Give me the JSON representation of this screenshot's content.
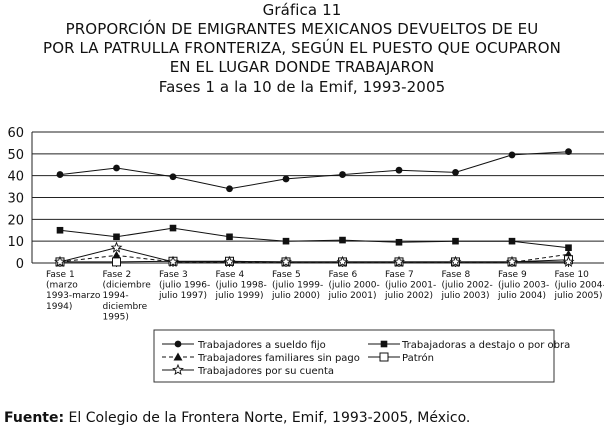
{
  "heading": {
    "figure_label": "Gráfica 11",
    "line1": "PROPORCIÓN DE EMIGRANTES MEXICANOS DEVUELTOS DE EU",
    "line2": "POR LA PATRULLA FRONTERIZA, SEGÚN EL PUESTO QUE OCUPARON",
    "line3": "EN EL LUGAR DONDE TRABAJARON",
    "line4": "Fases 1 a la 10 de la Emif, 1993-2005"
  },
  "footer": {
    "label": "Fuente:",
    "text": " El Colegio de la Frontera Norte, Emif, 1993-2005, México."
  },
  "chart_data": {
    "type": "line",
    "title": "Fases 1 a la 10 de la Emif, 1993-2005",
    "xlabel": "",
    "ylabel": "",
    "ylim": [
      0,
      60
    ],
    "yticks": [
      0,
      10,
      20,
      30,
      40,
      50,
      60
    ],
    "grid": true,
    "legend_position": "bottom",
    "categories": [
      [
        "Fase 1",
        "(marzo",
        "1993-marzo",
        "1994)"
      ],
      [
        "Fase 2",
        "(diciembre",
        "1994-",
        "diciembre",
        "1995)"
      ],
      [
        "Fase 3",
        "(julio 1996-",
        "julio 1997)"
      ],
      [
        "Fase 4",
        "(julio 1998-",
        "julio 1999)"
      ],
      [
        "Fase 5",
        "(julio 1999-",
        "julio 2000)"
      ],
      [
        "Fase 6",
        "(julio 2000-",
        "julio 2001)"
      ],
      [
        "Fase 7",
        "(julio 2001-",
        "julio 2002)"
      ],
      [
        "Fase 8",
        "(julio 2002-",
        "julio 2003)"
      ],
      [
        "Fase 9",
        "(julio 2003-",
        "julio 2004)"
      ],
      [
        "Fase 10",
        "(julio 2004-",
        "julio 2005)"
      ]
    ],
    "series": [
      {
        "name": "Trabajadores a sueldo fijo",
        "marker": "circle",
        "dash": "solid",
        "values": [
          40.5,
          43.5,
          39.5,
          34,
          38.5,
          40.5,
          42.5,
          41.5,
          49.5,
          51
        ]
      },
      {
        "name": "Trabajadoras a destajo o por obra",
        "marker": "square-filled",
        "dash": "solid",
        "values": [
          15,
          12,
          16,
          12,
          10,
          10.5,
          9.5,
          10,
          10,
          7
        ]
      },
      {
        "name": "Trabajadores familiares sin pago",
        "marker": "triangle",
        "dash": "dashed",
        "values": [
          0.5,
          3.5,
          0.5,
          0.3,
          0.3,
          0.3,
          0.3,
          0.3,
          0.3,
          4
        ]
      },
      {
        "name": "Patrón",
        "marker": "square-open",
        "dash": "solid",
        "values": [
          0.5,
          0.5,
          0.8,
          0.8,
          0.5,
          0.5,
          0.5,
          0.5,
          0.5,
          1.5
        ]
      },
      {
        "name": "Trabajadores por su cuenta",
        "marker": "star",
        "dash": "solid",
        "values": [
          0.5,
          7,
          0.5,
          0.5,
          0.5,
          0.5,
          0.5,
          0.5,
          0.5,
          0.5
        ]
      }
    ]
  }
}
